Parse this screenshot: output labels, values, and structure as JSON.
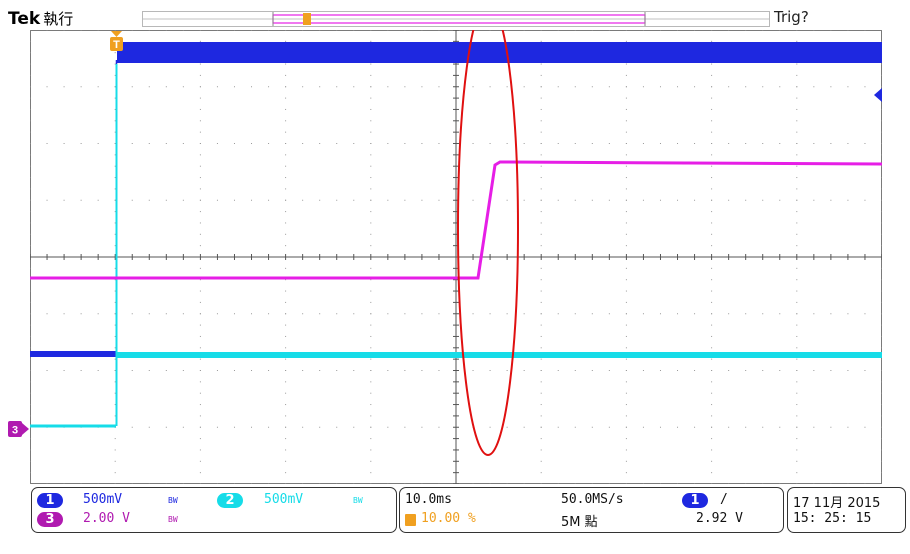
{
  "header": {
    "brand": "Tek",
    "run_status": "執行",
    "trigger_status": "Trig?"
  },
  "colors": {
    "ch1": "#1e28e0",
    "ch2": "#16dce8",
    "ch3": "#e61ee6",
    "trigger": "#f0a020",
    "annotation": "#e01010",
    "grid": "#9a9a9a"
  },
  "channels": [
    {
      "id": "1",
      "scale": "500mV",
      "bandwidth_mark": "BW"
    },
    {
      "id": "2",
      "scale": "500mV",
      "bandwidth_mark": "BW"
    },
    {
      "id": "3",
      "scale": "2.00 V",
      "bandwidth_mark": "BW"
    }
  ],
  "timebase": {
    "scale": "10.0ms",
    "trigger_position": "10.00 %",
    "sample_rate": "50.0MS/s",
    "record_length": "5M 點"
  },
  "trigger": {
    "source": "1",
    "slope_symbol": "/",
    "level": "2.92 V"
  },
  "datetime": {
    "date": "17 11月  2015",
    "time": "15: 25: 15"
  },
  "markers": {
    "trigger_mark": "T",
    "ch3_marker": "3"
  }
}
